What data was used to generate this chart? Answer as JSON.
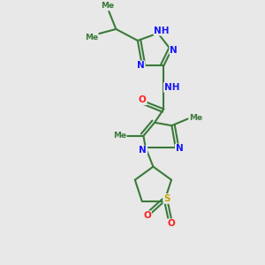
{
  "bg_color": "#e8e8e8",
  "bond_color": "#3a7a3a",
  "bond_width": 1.5,
  "atom_colors": {
    "N": "#1515ff",
    "O": "#ff2020",
    "S": "#c8a000",
    "C": "#3a7a3a",
    "H": "#666666"
  },
  "font_size": 7.5,
  "fig_size": [
    3.0,
    3.0
  ],
  "dpi": 100,
  "xlim": [
    0,
    10
  ],
  "ylim": [
    0,
    10
  ]
}
